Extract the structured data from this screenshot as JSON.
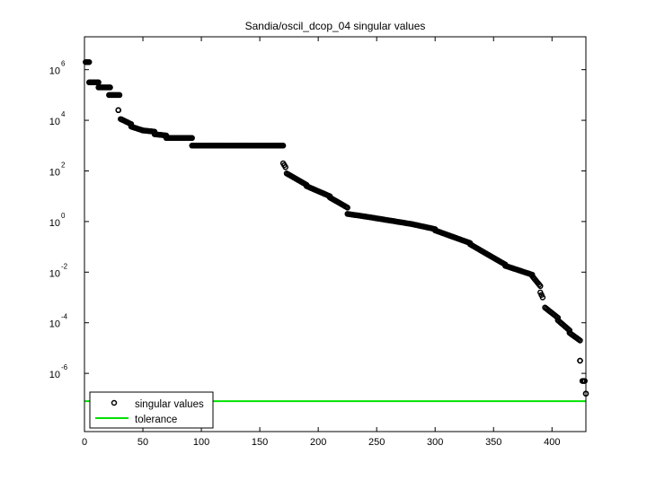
{
  "chart_data": {
    "type": "scatter",
    "title": "Sandia/oscil_dcop_04 singular values",
    "xlabel": "",
    "ylabel": "",
    "xlim": [
      0,
      429
    ],
    "ylim_log10": [
      -8.3,
      7.3
    ],
    "yscale": "log",
    "grid": false,
    "legend_position": "lower left",
    "x_ticks": [
      0,
      50,
      100,
      150,
      200,
      250,
      300,
      350,
      400
    ],
    "y_ticks": [
      {
        "base": "10",
        "exp": "6"
      },
      {
        "base": "10",
        "exp": "4"
      },
      {
        "base": "10",
        "exp": "2"
      },
      {
        "base": "10",
        "exp": "0"
      },
      {
        "base": "10",
        "exp": "-2"
      },
      {
        "base": "10",
        "exp": "-4"
      },
      {
        "base": "10",
        "exp": "-6"
      }
    ],
    "series": [
      {
        "name": "singular values",
        "marker": "circle-open",
        "color": "#000000",
        "segments_log10": [
          {
            "x0": 1,
            "x1": 4,
            "y0": 6.3,
            "y1": 6.3
          },
          {
            "x0": 4,
            "x1": 12,
            "y0": 5.5,
            "y1": 5.5
          },
          {
            "x0": 12,
            "x1": 22,
            "y0": 5.3,
            "y1": 5.3
          },
          {
            "x0": 21,
            "x1": 30,
            "y0": 5.0,
            "y1": 5.0
          },
          {
            "x0": 29,
            "x1": 29,
            "y0": 4.4,
            "y1": 4.4
          },
          {
            "x0": 31,
            "x1": 40,
            "y0": 4.05,
            "y1": 3.85
          },
          {
            "x0": 40,
            "x1": 50,
            "y0": 3.75,
            "y1": 3.6
          },
          {
            "x0": 50,
            "x1": 60,
            "y0": 3.6,
            "y1": 3.55
          },
          {
            "x0": 60,
            "x1": 70,
            "y0": 3.45,
            "y1": 3.4
          },
          {
            "x0": 70,
            "x1": 92,
            "y0": 3.3,
            "y1": 3.3
          },
          {
            "x0": 92,
            "x1": 170,
            "y0": 3.0,
            "y1": 3.0
          },
          {
            "x0": 170,
            "x1": 172,
            "y0": 2.3,
            "y1": 2.15
          },
          {
            "x0": 173,
            "x1": 190,
            "y0": 1.9,
            "y1": 1.45
          },
          {
            "x0": 190,
            "x1": 210,
            "y0": 1.4,
            "y1": 1.0
          },
          {
            "x0": 210,
            "x1": 225,
            "y0": 0.95,
            "y1": 0.55
          },
          {
            "x0": 225,
            "x1": 240,
            "y0": 0.3,
            "y1": 0.2
          },
          {
            "x0": 240,
            "x1": 280,
            "y0": 0.2,
            "y1": -0.1
          },
          {
            "x0": 280,
            "x1": 300,
            "y0": -0.1,
            "y1": -0.3
          },
          {
            "x0": 300,
            "x1": 330,
            "y0": -0.35,
            "y1": -0.85
          },
          {
            "x0": 330,
            "x1": 360,
            "y0": -0.9,
            "y1": -1.7
          },
          {
            "x0": 360,
            "x1": 383,
            "y0": -1.75,
            "y1": -2.1
          },
          {
            "x0": 383,
            "x1": 390,
            "y0": -2.15,
            "y1": -2.55
          },
          {
            "x0": 390,
            "x1": 392,
            "y0": -2.8,
            "y1": -3.0
          },
          {
            "x0": 394,
            "x1": 405,
            "y0": -3.4,
            "y1": -3.8
          },
          {
            "x0": 405,
            "x1": 415,
            "y0": -3.9,
            "y1": -4.3
          },
          {
            "x0": 415,
            "x1": 424,
            "y0": -4.4,
            "y1": -4.7
          },
          {
            "x0": 424,
            "x1": 424,
            "y0": -5.5,
            "y1": -5.5
          },
          {
            "x0": 426,
            "x1": 428,
            "y0": -6.3,
            "y1": -6.3
          },
          {
            "x0": 429,
            "x1": 429,
            "y0": -6.8,
            "y1": -6.8
          }
        ]
      },
      {
        "name": "tolerance",
        "marker": "line",
        "color": "#00e000",
        "value_log10": -7.1
      }
    ]
  },
  "title": "Sandia/oscil_dcop_04 singular values",
  "legend": {
    "items": [
      {
        "label": "singular values"
      },
      {
        "label": "tolerance"
      }
    ]
  }
}
